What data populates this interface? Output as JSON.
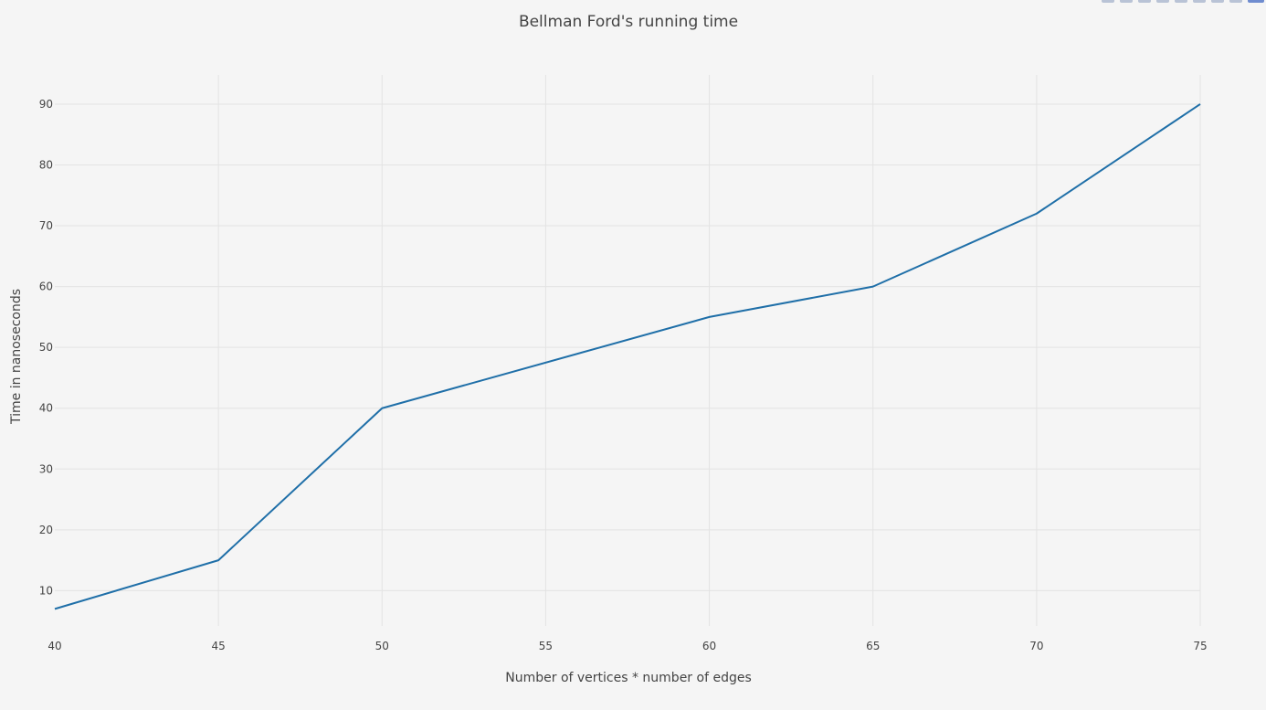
{
  "chart_data": {
    "type": "line",
    "title": "Bellman Ford's running time",
    "xlabel": "Number of vertices * number of edges",
    "ylabel": "Time in nanoseconds",
    "x": [
      40,
      45,
      50,
      60,
      65,
      70,
      75
    ],
    "series": [
      {
        "values": [
          7,
          15,
          40,
          55,
          60,
          72,
          90
        ],
        "color": "#1f6fa8"
      }
    ],
    "xlim": [
      40,
      75
    ],
    "ylim": [
      4.2,
      94.8
    ],
    "xticks": [
      40,
      45,
      50,
      55,
      60,
      65,
      70,
      75
    ],
    "yticks": [
      10,
      20,
      30,
      40,
      50,
      60,
      70,
      80,
      90
    ],
    "grid": true,
    "legend": "none"
  },
  "colors": {
    "background": "#f5f5f5",
    "grid": "#e3e3e3",
    "line": "#1f6fa8",
    "text": "#444444"
  },
  "modebar_icons": [
    "zoom-icon",
    "pan-icon",
    "zoom-in-icon",
    "zoom-out-icon",
    "autoscale-icon",
    "reset-axes-icon",
    "spike-lines-icon",
    "hover-closest-icon",
    "hover-compare-icon",
    "plotly-logo-icon"
  ]
}
